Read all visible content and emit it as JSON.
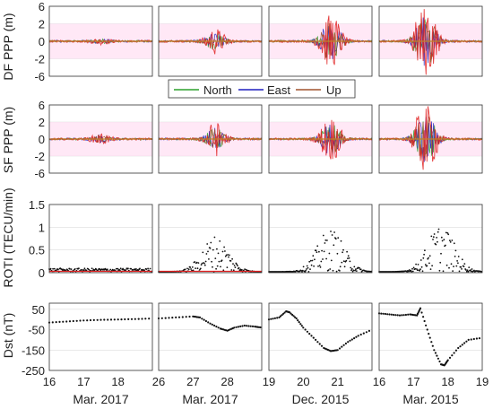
{
  "figure": {
    "row_labels": [
      "DF PPP (m)",
      "SF PPP (m)",
      "ROTI (TECU/min)",
      "Dst (nT)"
    ],
    "legend": [
      {
        "label": "North",
        "color": "#2ca02c"
      },
      {
        "label": "East",
        "color": "#1f1fbf"
      },
      {
        "label": "Up",
        "color": "#a0522d"
      }
    ],
    "columns": [
      {
        "date_label": "Mar. 2017",
        "x_ticks": [
          "16",
          "17",
          "18"
        ]
      },
      {
        "date_label": "Mar. 2017",
        "x_ticks": [
          "26",
          "27",
          "28"
        ]
      },
      {
        "date_label": "Dec. 2015",
        "x_ticks": [
          "19",
          "20",
          "21"
        ]
      },
      {
        "date_label": "Mar. 2015",
        "x_ticks": [
          "16",
          "17",
          "18",
          "19"
        ]
      }
    ],
    "y_ticks": {
      "ppp": [
        "6",
        "2",
        "0",
        "-2",
        "-6"
      ],
      "roti": [
        "1.5",
        "1",
        "0.5",
        "0"
      ],
      "dst": [
        "50",
        "-50",
        "-150",
        "-250"
      ]
    }
  },
  "chart_data": [
    {
      "type": "line",
      "title": "DF PPP (m)",
      "ylabel": "DF PPP (m)",
      "ylim": [
        -6,
        6
      ],
      "yscale": "symlog",
      "grid": true,
      "series": [
        {
          "name": "North",
          "color": "#2ca02c"
        },
        {
          "name": "East",
          "color": "#1f1fbf"
        },
        {
          "name": "Up",
          "color": "#a0522d"
        }
      ],
      "panels": [
        {
          "period": "Mar. 2017",
          "x": [
            16,
            17,
            18
          ],
          "peak_abs_error_m": 0.3
        },
        {
          "period": "Mar. 2017",
          "x": [
            26,
            27,
            28
          ],
          "peak_abs_error_m": 1.5
        },
        {
          "period": "Dec. 2015",
          "x": [
            19,
            20,
            21
          ],
          "peak_abs_error_m": 4.0
        },
        {
          "period": "Mar. 2015",
          "x": [
            16,
            17,
            18,
            19
          ],
          "peak_abs_error_m": 6.0
        }
      ]
    },
    {
      "type": "line",
      "title": "SF PPP (m)",
      "ylabel": "SF PPP (m)",
      "ylim": [
        -6,
        6
      ],
      "yscale": "symlog",
      "grid": true,
      "legend": "top-center",
      "series": [
        {
          "name": "North",
          "color": "#2ca02c"
        },
        {
          "name": "East",
          "color": "#1f1fbf"
        },
        {
          "name": "Up",
          "color": "#a0522d"
        }
      ],
      "panels": [
        {
          "period": "Mar. 2017",
          "x": [
            16,
            17,
            18
          ],
          "peak_abs_error_m": 0.6
        },
        {
          "period": "Mar. 2017",
          "x": [
            26,
            27,
            28
          ],
          "peak_abs_error_m": 2.0
        },
        {
          "period": "Dec. 2015",
          "x": [
            19,
            20,
            21
          ],
          "peak_abs_error_m": 3.0
        },
        {
          "period": "Mar. 2015",
          "x": [
            16,
            17,
            18,
            19
          ],
          "peak_abs_error_m": 6.0
        }
      ]
    },
    {
      "type": "scatter",
      "title": "ROTI (TECU/min)",
      "ylabel": "ROTI (TECU/min)",
      "ylim": [
        0,
        1.5
      ],
      "grid": true,
      "panels": [
        {
          "period": "Mar. 2017",
          "x": [
            16,
            17,
            18
          ],
          "max_roti": 0.15
        },
        {
          "period": "Mar. 2017",
          "x": [
            26,
            27,
            28
          ],
          "max_roti": 0.8
        },
        {
          "period": "Dec. 2015",
          "x": [
            19,
            20,
            21
          ],
          "max_roti": 0.95
        },
        {
          "period": "Mar. 2015",
          "x": [
            16,
            17,
            18,
            19
          ],
          "max_roti": 1.05
        }
      ]
    },
    {
      "type": "scatter",
      "title": "Dst (nT)",
      "ylabel": "Dst (nT)",
      "ylim": [
        -250,
        80
      ],
      "grid": true,
      "panels": [
        {
          "period": "Mar. 2017",
          "x_range": [
            16,
            19
          ],
          "points": [
            [
              16.0,
              -15
            ],
            [
              16.5,
              -10
            ],
            [
              17.0,
              -5
            ],
            [
              17.5,
              -2
            ],
            [
              18.0,
              0
            ],
            [
              18.5,
              2
            ],
            [
              19.0,
              5
            ]
          ]
        },
        {
          "period": "Mar. 2017",
          "x_range": [
            26,
            29
          ],
          "points": [
            [
              26.0,
              5
            ],
            [
              26.5,
              10
            ],
            [
              27.0,
              15
            ],
            [
              27.2,
              10
            ],
            [
              27.5,
              -20
            ],
            [
              27.8,
              -45
            ],
            [
              28.0,
              -55
            ],
            [
              28.2,
              -40
            ],
            [
              28.5,
              -30
            ],
            [
              28.8,
              -35
            ],
            [
              29.0,
              -40
            ]
          ]
        },
        {
          "period": "Dec. 2015",
          "x_range": [
            19,
            22
          ],
          "points": [
            [
              19.0,
              0
            ],
            [
              19.3,
              10
            ],
            [
              19.5,
              40
            ],
            [
              19.6,
              35
            ],
            [
              19.8,
              5
            ],
            [
              20.0,
              -40
            ],
            [
              20.3,
              -90
            ],
            [
              20.6,
              -140
            ],
            [
              20.8,
              -155
            ],
            [
              21.0,
              -150
            ],
            [
              21.3,
              -110
            ],
            [
              21.6,
              -80
            ],
            [
              22.0,
              -50
            ]
          ]
        },
        {
          "period": "Mar. 2015",
          "x_range": [
            16,
            19
          ],
          "points": [
            [
              16.0,
              30
            ],
            [
              16.3,
              25
            ],
            [
              16.6,
              20
            ],
            [
              16.9,
              25
            ],
            [
              17.1,
              20
            ],
            [
              17.2,
              55
            ],
            [
              17.4,
              -50
            ],
            [
              17.6,
              -150
            ],
            [
              17.8,
              -220
            ],
            [
              17.9,
              -225
            ],
            [
              18.0,
              -200
            ],
            [
              18.3,
              -140
            ],
            [
              18.6,
              -100
            ],
            [
              19.0,
              -90
            ]
          ]
        }
      ]
    }
  ]
}
